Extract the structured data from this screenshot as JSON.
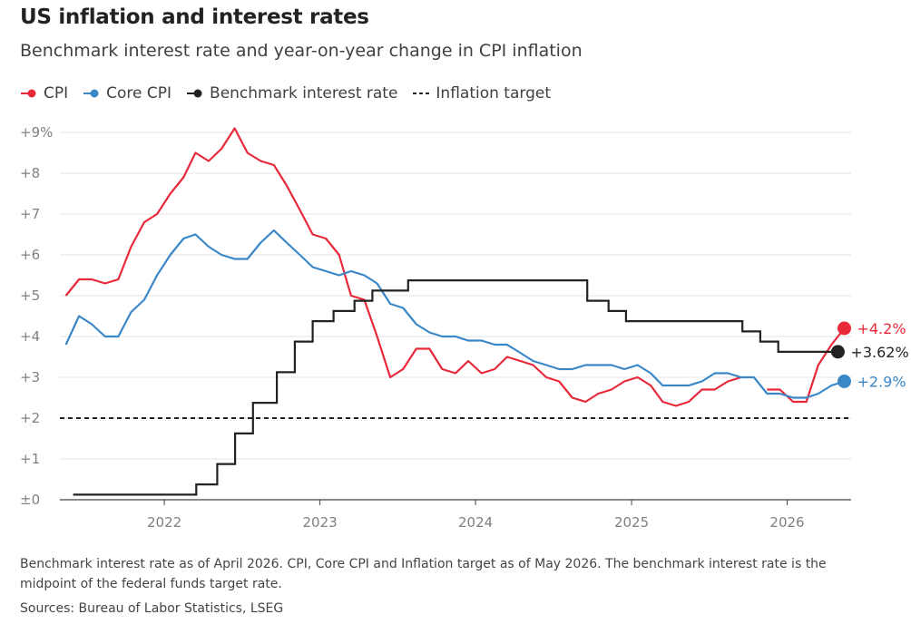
{
  "title": "US inflation and interest rates",
  "subtitle": "Benchmark interest rate and year-on-year change in CPI inflation",
  "footnote": "Benchmark interest rate as of April 2026. CPI, Core CPI and Inflation target as of May 2026. The benchmark interest rate is the midpoint of the federal funds target rate.",
  "sources": "Sources: Bureau of Labor Statistics, LSEG",
  "colors": {
    "cpi": "#e8293a",
    "core": "#3a87c8",
    "rate": "#222222",
    "target": "#222222",
    "grid": "#e3e3e3",
    "axis": "#444444",
    "tick": "#808080"
  },
  "chart_data": {
    "type": "line",
    "grid": true,
    "legend": "top-left",
    "x_axis": {
      "type": "date",
      "range": [
        "2021-05-01",
        "2026-05-31"
      ],
      "tick_labels": [
        "2022",
        "2023",
        "2024",
        "2025",
        "2026"
      ],
      "tick_dates": [
        "2022-01-01",
        "2023-01-01",
        "2024-01-01",
        "2025-01-01",
        "2026-01-01"
      ]
    },
    "y_axis": {
      "unit": "%",
      "ylim": [
        0,
        9
      ],
      "tick_values": [
        0,
        1,
        2,
        3,
        4,
        5,
        6,
        7,
        8,
        9
      ],
      "tick_labels": [
        "±0",
        "+1",
        "+2",
        "+3",
        "+4",
        "+5",
        "+6",
        "+7",
        "+8",
        "+9%"
      ]
    },
    "series": [
      {
        "name": "CPI",
        "key": "cpi",
        "style": "line",
        "points": [
          [
            "2021-05",
            5.0
          ],
          [
            "2021-06",
            5.4
          ],
          [
            "2021-07",
            5.4
          ],
          [
            "2021-08",
            5.3
          ],
          [
            "2021-09",
            5.4
          ],
          [
            "2021-10",
            6.2
          ],
          [
            "2021-11",
            6.8
          ],
          [
            "2021-12",
            7.0
          ],
          [
            "2022-01",
            7.5
          ],
          [
            "2022-02",
            7.9
          ],
          [
            "2022-03",
            8.5
          ],
          [
            "2022-04",
            8.3
          ],
          [
            "2022-05",
            8.6
          ],
          [
            "2022-06",
            9.1
          ],
          [
            "2022-07",
            8.5
          ],
          [
            "2022-08",
            8.3
          ],
          [
            "2022-09",
            8.2
          ],
          [
            "2022-10",
            7.7
          ],
          [
            "2022-11",
            7.1
          ],
          [
            "2022-12",
            6.5
          ],
          [
            "2023-01",
            6.4
          ],
          [
            "2023-02",
            6.0
          ],
          [
            "2023-03",
            5.0
          ],
          [
            "2023-04",
            4.9
          ],
          [
            "2023-05",
            4.0
          ],
          [
            "2023-06",
            3.0
          ],
          [
            "2023-07",
            3.2
          ],
          [
            "2023-08",
            3.7
          ],
          [
            "2023-09",
            3.7
          ],
          [
            "2023-10",
            3.2
          ],
          [
            "2023-11",
            3.1
          ],
          [
            "2023-12",
            3.4
          ],
          [
            "2024-01",
            3.1
          ],
          [
            "2024-02",
            3.2
          ],
          [
            "2024-03",
            3.5
          ],
          [
            "2024-04",
            3.4
          ],
          [
            "2024-05",
            3.3
          ],
          [
            "2024-06",
            3.0
          ],
          [
            "2024-07",
            2.9
          ],
          [
            "2024-08",
            2.5
          ],
          [
            "2024-09",
            2.4
          ],
          [
            "2024-10",
            2.6
          ],
          [
            "2024-11",
            2.7
          ],
          [
            "2024-12",
            2.9
          ],
          [
            "2025-01",
            3.0
          ],
          [
            "2025-02",
            2.8
          ],
          [
            "2025-03",
            2.4
          ],
          [
            "2025-04",
            2.3
          ],
          [
            "2025-05",
            2.4
          ],
          [
            "2025-06",
            2.7
          ],
          [
            "2025-07",
            2.7
          ],
          [
            "2025-08",
            2.9
          ],
          [
            "2025-09",
            3.0
          ],
          null,
          [
            "2025-11",
            2.7
          ],
          [
            "2025-12",
            2.7
          ],
          [
            "2026-01",
            2.4
          ],
          [
            "2026-02",
            2.4
          ],
          [
            "2026-03",
            3.3
          ],
          [
            "2026-04",
            3.8
          ],
          [
            "2026-05",
            4.2
          ]
        ],
        "end_label": "+4.2%"
      },
      {
        "name": "Core CPI",
        "key": "core",
        "style": "line",
        "points": [
          [
            "2021-05",
            3.8
          ],
          [
            "2021-06",
            4.5
          ],
          [
            "2021-07",
            4.3
          ],
          [
            "2021-08",
            4.0
          ],
          [
            "2021-09",
            4.0
          ],
          [
            "2021-10",
            4.6
          ],
          [
            "2021-11",
            4.9
          ],
          [
            "2021-12",
            5.5
          ],
          [
            "2022-01",
            6.0
          ],
          [
            "2022-02",
            6.4
          ],
          [
            "2022-03",
            6.5
          ],
          [
            "2022-04",
            6.2
          ],
          [
            "2022-05",
            6.0
          ],
          [
            "2022-06",
            5.9
          ],
          [
            "2022-07",
            5.9
          ],
          [
            "2022-08",
            6.3
          ],
          [
            "2022-09",
            6.6
          ],
          [
            "2022-10",
            6.3
          ],
          [
            "2022-11",
            6.0
          ],
          [
            "2022-12",
            5.7
          ],
          [
            "2023-01",
            5.6
          ],
          [
            "2023-02",
            5.5
          ],
          [
            "2023-03",
            5.6
          ],
          [
            "2023-04",
            5.5
          ],
          [
            "2023-05",
            5.3
          ],
          [
            "2023-06",
            4.8
          ],
          [
            "2023-07",
            4.7
          ],
          [
            "2023-08",
            4.3
          ],
          [
            "2023-09",
            4.1
          ],
          [
            "2023-10",
            4.0
          ],
          [
            "2023-11",
            4.0
          ],
          [
            "2023-12",
            3.9
          ],
          [
            "2024-01",
            3.9
          ],
          [
            "2024-02",
            3.8
          ],
          [
            "2024-03",
            3.8
          ],
          [
            "2024-04",
            3.6
          ],
          [
            "2024-05",
            3.4
          ],
          [
            "2024-06",
            3.3
          ],
          [
            "2024-07",
            3.2
          ],
          [
            "2024-08",
            3.2
          ],
          [
            "2024-09",
            3.3
          ],
          [
            "2024-10",
            3.3
          ],
          [
            "2024-11",
            3.3
          ],
          [
            "2024-12",
            3.2
          ],
          [
            "2025-01",
            3.3
          ],
          [
            "2025-02",
            3.1
          ],
          [
            "2025-03",
            2.8
          ],
          [
            "2025-04",
            2.8
          ],
          [
            "2025-05",
            2.8
          ],
          [
            "2025-06",
            2.9
          ],
          [
            "2025-07",
            3.1
          ],
          [
            "2025-08",
            3.1
          ],
          [
            "2025-09",
            3.0
          ],
          [
            "2025-10",
            3.0
          ],
          [
            "2025-11",
            2.6
          ],
          [
            "2025-12",
            2.6
          ],
          [
            "2026-01",
            2.5
          ],
          [
            "2026-02",
            2.5
          ],
          [
            "2026-03",
            2.6
          ],
          [
            "2026-04",
            2.8
          ],
          [
            "2026-05",
            2.9
          ]
        ],
        "end_label": "+2.9%"
      },
      {
        "name": "Benchmark interest rate",
        "key": "rate",
        "style": "step",
        "points": [
          [
            "2021-06-01",
            0.125
          ],
          [
            "2022-03-17",
            0.375
          ],
          [
            "2022-05-05",
            0.875
          ],
          [
            "2022-06-16",
            1.625
          ],
          [
            "2022-07-28",
            2.375
          ],
          [
            "2022-09-22",
            3.125
          ],
          [
            "2022-11-03",
            3.875
          ],
          [
            "2022-12-15",
            4.375
          ],
          [
            "2023-02-02",
            4.625
          ],
          [
            "2023-03-23",
            4.875
          ],
          [
            "2023-05-04",
            5.125
          ],
          [
            "2023-07-27",
            5.375
          ],
          [
            "2024-09-19",
            4.875
          ],
          [
            "2024-11-08",
            4.625
          ],
          [
            "2024-12-19",
            4.375
          ],
          [
            "2025-09-18",
            4.125
          ],
          [
            "2025-10-30",
            3.875
          ],
          [
            "2025-12-11",
            3.625
          ],
          [
            "2026-04-30",
            3.625
          ]
        ],
        "end_label": "+3.62%"
      },
      {
        "name": "Inflation target",
        "key": "target",
        "style": "dashed",
        "points": [
          [
            "2021-05-01",
            2.0
          ],
          [
            "2026-05-31",
            2.0
          ]
        ]
      }
    ]
  }
}
